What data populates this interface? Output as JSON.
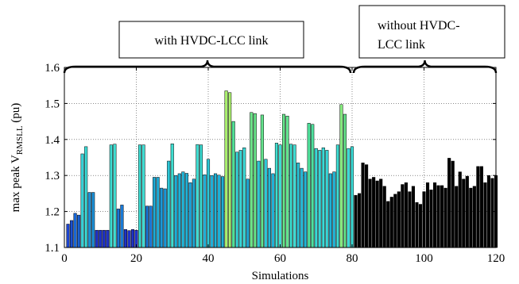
{
  "chart_data": {
    "type": "bar",
    "xlabel": "Simulations",
    "ylabel_main": "max peak V",
    "ylabel_sub": "RMSLL",
    "ylabel_unit": " (pu)",
    "xlim": [
      0,
      120
    ],
    "ylim": [
      1.1,
      1.6
    ],
    "xticks": [
      0,
      20,
      40,
      60,
      80,
      100,
      120
    ],
    "yticks": [
      1.1,
      1.2,
      1.3,
      1.4,
      1.5,
      1.6
    ],
    "grid": true,
    "annotations": [
      {
        "text": "with HVDC-LCC link",
        "range": [
          0,
          80
        ]
      },
      {
        "text_lines": [
          "without HVDC-",
          "LCC link"
        ],
        "range": [
          80,
          120
        ]
      }
    ],
    "groups": [
      {
        "range": [
          1,
          80
        ],
        "color_scale": "blue-cyan-green (colormap by value)"
      },
      {
        "range": [
          81,
          120
        ],
        "color": "#000000"
      }
    ],
    "values": [
      1.165,
      1.175,
      1.195,
      1.19,
      1.36,
      1.38,
      1.253,
      1.253,
      1.148,
      1.148,
      1.148,
      1.148,
      1.385,
      1.387,
      1.207,
      1.218,
      1.15,
      1.147,
      1.15,
      1.148,
      1.385,
      1.385,
      1.215,
      1.215,
      1.295,
      1.295,
      1.265,
      1.263,
      1.34,
      1.388,
      1.3,
      1.305,
      1.31,
      1.306,
      1.28,
      1.29,
      1.386,
      1.385,
      1.302,
      1.345,
      1.3,
      1.305,
      1.301,
      1.297,
      1.535,
      1.53,
      1.45,
      1.365,
      1.37,
      1.377,
      1.29,
      1.475,
      1.472,
      1.34,
      1.468,
      1.345,
      1.32,
      1.305,
      1.39,
      1.385,
      1.47,
      1.465,
      1.387,
      1.385,
      1.335,
      1.32,
      1.31,
      1.445,
      1.442,
      1.375,
      1.37,
      1.377,
      1.37,
      1.305,
      1.31,
      1.385,
      1.497,
      1.47,
      1.375,
      1.38,
      1.245,
      1.25,
      1.335,
      1.33,
      1.29,
      1.295,
      1.285,
      1.29,
      1.27,
      1.228,
      1.24,
      1.248,
      1.255,
      1.275,
      1.28,
      1.255,
      1.27,
      1.225,
      1.22,
      1.255,
      1.28,
      1.26,
      1.28,
      1.272,
      1.272,
      1.265,
      1.348,
      1.34,
      1.27,
      1.31,
      1.29,
      1.298,
      1.265,
      1.27,
      1.325,
      1.325,
      1.28,
      1.3,
      1.292,
      1.3
    ]
  }
}
